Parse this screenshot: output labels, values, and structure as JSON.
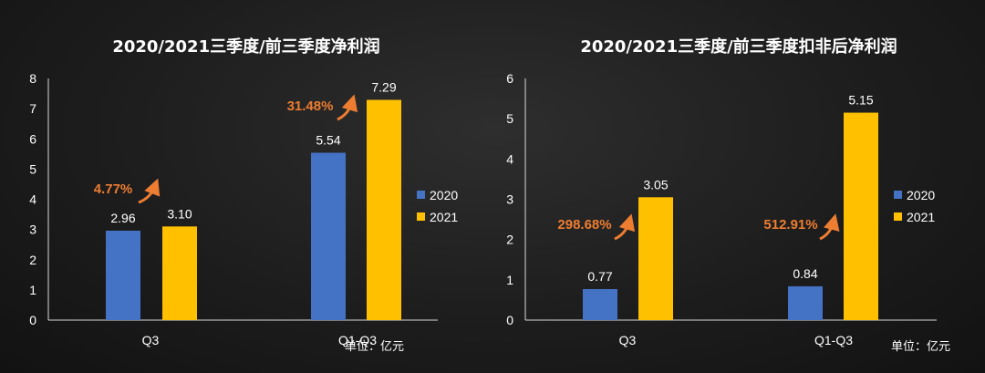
{
  "colors": {
    "series_2020": "#4472c4",
    "series_2021": "#ffc000",
    "growth": "#ed7d31",
    "text": "#ffffff",
    "axis": "#d9d9d9"
  },
  "unit_text": "单位：亿元",
  "chart_data": [
    {
      "type": "bar",
      "title": "2020/2021三季度/前三季度净利润",
      "categories": [
        "Q3",
        "Q1-Q3"
      ],
      "series": [
        {
          "name": "2020",
          "values": [
            2.96,
            5.54
          ],
          "labels": [
            "2.96",
            "5.54"
          ]
        },
        {
          "name": "2021",
          "values": [
            3.1,
            7.29
          ],
          "labels": [
            "3.10",
            "7.29"
          ]
        }
      ],
      "annotations": [
        "4.77%",
        "31.48%"
      ],
      "ylim": [
        0,
        8
      ],
      "yticks": [
        "0",
        "1",
        "2",
        "3",
        "4",
        "5",
        "6",
        "7",
        "8"
      ],
      "legend": "right",
      "grid": false,
      "unit": "单位：亿元"
    },
    {
      "type": "bar",
      "title": "2020/2021三季度/前三季度扣非后净利润",
      "categories": [
        "Q3",
        "Q1-Q3"
      ],
      "series": [
        {
          "name": "2020",
          "values": [
            0.77,
            0.84
          ],
          "labels": [
            "0.77",
            "0.84"
          ]
        },
        {
          "name": "2021",
          "values": [
            3.05,
            5.15
          ],
          "labels": [
            "3.05",
            "5.15"
          ]
        }
      ],
      "annotations": [
        "298.68%",
        "512.91%"
      ],
      "ylim": [
        0,
        6
      ],
      "yticks": [
        "0",
        "1",
        "2",
        "3",
        "4",
        "5",
        "6"
      ],
      "legend": "right",
      "grid": false,
      "unit": "单位：亿元"
    }
  ]
}
